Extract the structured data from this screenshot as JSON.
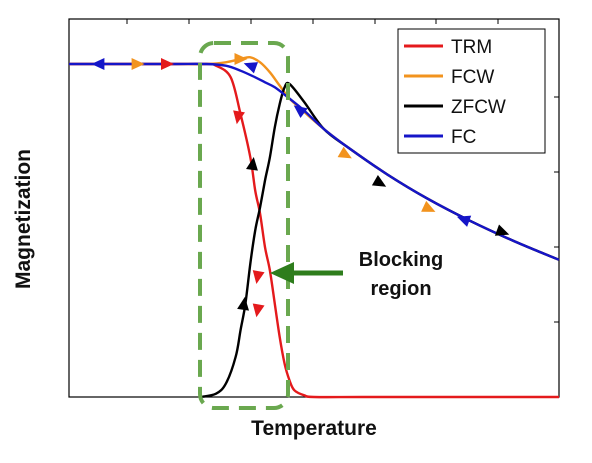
{
  "chart_data": {
    "type": "line",
    "xlabel": "Temperature",
    "ylabel": "Magnetization",
    "xlim": [
      0,
      100
    ],
    "ylim": [
      0,
      100
    ],
    "grid": false,
    "legend_position": "top-right",
    "colors": {
      "TRM": "#e41a1c",
      "FCW": "#f2931e",
      "ZFCW": "#000000",
      "FC": "#1515c8",
      "annotation": "#2e7d1c",
      "blocking_box": "#6aa84f"
    },
    "series": [
      {
        "name": "TRM",
        "x": [
          0,
          20,
          28,
          30,
          33,
          35,
          37,
          38,
          39,
          40,
          41,
          42,
          43,
          44,
          45,
          46,
          48,
          50,
          60,
          80,
          100
        ],
        "y": [
          100,
          100,
          100,
          99.5,
          96,
          85,
          72,
          62,
          55,
          45,
          38,
          28,
          18,
          10,
          5,
          2,
          0.5,
          0,
          0,
          0,
          0
        ]
      },
      {
        "name": "FCW",
        "x": [
          0,
          20,
          28,
          32,
          35,
          37,
          39,
          41,
          43,
          45,
          48,
          52,
          57,
          65,
          73,
          82,
          91,
          100
        ],
        "y": [
          100,
          100,
          100,
          100.5,
          101.5,
          102,
          100.5,
          97.5,
          93.5,
          89.6,
          85.6,
          80.5,
          74.9,
          66.8,
          59.7,
          52.8,
          46.7,
          41.2
        ]
      },
      {
        "name": "ZFCW",
        "x": [
          27,
          30,
          32,
          34,
          35,
          36,
          37,
          38,
          39,
          40,
          41,
          42,
          43,
          44,
          45,
          48,
          52,
          57,
          65,
          73,
          82,
          91,
          100
        ],
        "y": [
          0,
          1,
          4,
          12,
          20,
          28,
          40,
          50,
          57,
          65,
          72,
          81,
          88,
          93,
          94,
          88.6,
          80.5,
          74.9,
          66.8,
          59.7,
          52.8,
          46.7,
          41.2
        ]
      },
      {
        "name": "FC",
        "x": [
          0,
          20,
          28,
          32,
          35,
          38,
          40,
          42,
          45,
          48,
          52,
          57,
          65,
          73,
          82,
          91,
          100
        ],
        "y": [
          100,
          100,
          100,
          99.5,
          98,
          96,
          94.5,
          93,
          89.6,
          86,
          80.5,
          74.9,
          66.8,
          59.7,
          52.8,
          46.7,
          41.2
        ]
      }
    ],
    "annotations": [
      {
        "text_lines": [
          "Blocking",
          "region"
        ],
        "arrow": "points left toward blocking region box"
      }
    ]
  }
}
